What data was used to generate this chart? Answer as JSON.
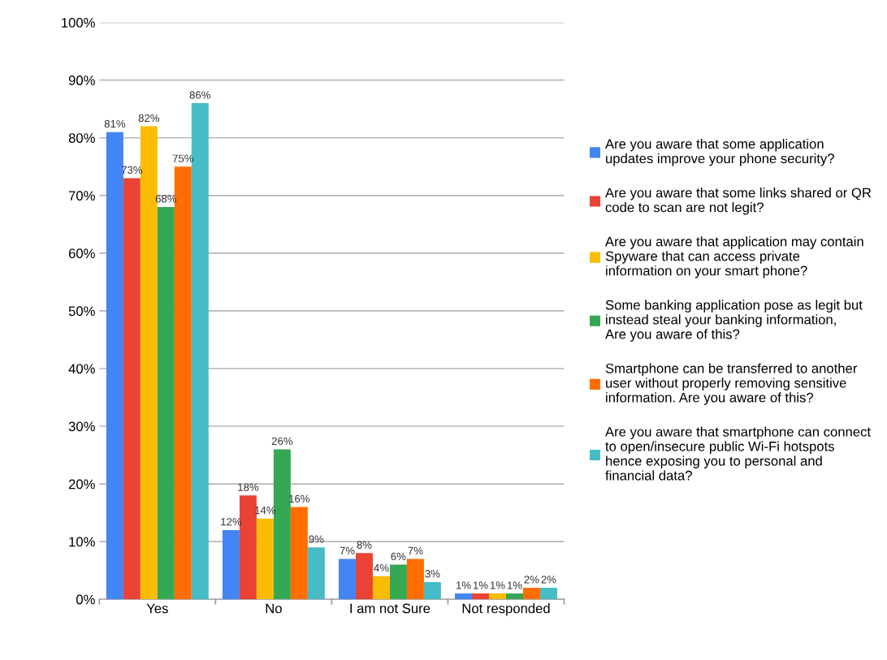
{
  "chart_data": {
    "type": "bar",
    "categories": [
      "Yes",
      "No",
      "I am not Sure",
      "Not responded"
    ],
    "series": [
      {
        "name": "Are you aware that some application updates improve your phone security?",
        "color": "#4285f4",
        "values": [
          81,
          12,
          7,
          1
        ],
        "value_labels": [
          "81%",
          "12%",
          "7%",
          "1%"
        ]
      },
      {
        "name": "Are you aware that some links shared or QR code to scan are not legit?",
        "color": "#ea4335",
        "values": [
          73,
          18,
          8,
          1
        ],
        "value_labels": [
          "73%",
          "18%",
          "8%",
          "1%"
        ]
      },
      {
        "name": "Are you aware that application may contain Spyware that can access private information on your smart phone?",
        "color": "#fbbc04",
        "values": [
          82,
          14,
          4,
          1
        ],
        "value_labels": [
          "82%",
          "14%",
          "4%",
          "1%"
        ]
      },
      {
        "name": "Some banking application pose as legit but instead steal your banking information, Are you aware of this?",
        "color": "#34a853",
        "values": [
          68,
          26,
          6,
          1
        ],
        "value_labels": [
          "68%",
          "26%",
          "6%",
          "1%"
        ]
      },
      {
        "name": "Smartphone can be transferred to another user without properly removing sensitive information. Are you aware of this?",
        "color": "#ff6d01",
        "values": [
          75,
          16,
          7,
          2
        ],
        "value_labels": [
          "75%",
          "16%",
          "7%",
          "2%"
        ]
      },
      {
        "name": "Are you aware that smartphone can connect to open/insecure public Wi-Fi hotspots hence exposing you to personal and financial data?",
        "color": "#46bdc6",
        "values": [
          86,
          9,
          3,
          2
        ],
        "value_labels": [
          "86%",
          "9%",
          "3%",
          "2%"
        ]
      }
    ],
    "ylim": [
      0,
      100
    ],
    "yticks": [
      {
        "value": 0,
        "label": "0%"
      },
      {
        "value": 10,
        "label": "10%"
      },
      {
        "value": 20,
        "label": "20%"
      },
      {
        "value": 30,
        "label": "30%"
      },
      {
        "value": 40,
        "label": "40%"
      },
      {
        "value": 50,
        "label": "50%"
      },
      {
        "value": 60,
        "label": "60%"
      },
      {
        "value": 70,
        "label": "70%"
      },
      {
        "value": 80,
        "label": "80%"
      },
      {
        "value": 90,
        "label": "90%"
      },
      {
        "value": 100,
        "label": "100%"
      }
    ],
    "grid": "y",
    "legend": "right"
  }
}
